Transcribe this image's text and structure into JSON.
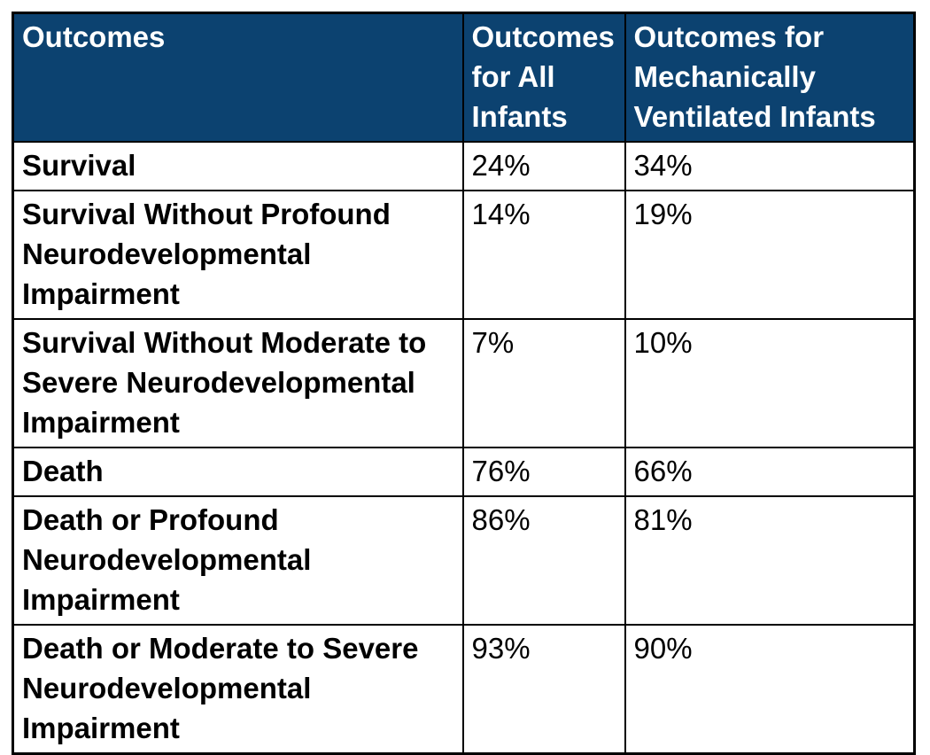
{
  "colors": {
    "header_bg": "#0C4270",
    "header_text": "#FFFFFF",
    "body_text": "#000000",
    "border": "#000000",
    "page_bg": "#FFFFFF"
  },
  "chart_data": {
    "type": "table",
    "columns": [
      "Outcomes",
      "Outcomes for All Infants",
      "Outcomes for Mechanically Ventilated Infants"
    ],
    "rows": [
      [
        "Survival",
        "24%",
        "34%"
      ],
      [
        "Survival Without Profound Neurodevelopmental Impairment",
        "14%",
        "19%"
      ],
      [
        "Survival Without Moderate to Severe Neurodevelopmental Impairment",
        "7%",
        "10%"
      ],
      [
        "Death",
        "76%",
        "66%"
      ],
      [
        "Death or Profound Neurodevelopmental Impairment",
        "86%",
        "81%"
      ],
      [
        "Death or Moderate to Severe Neurodevelopmental Impairment",
        "93%",
        "90%"
      ]
    ],
    "categories": [
      "Survival",
      "Survival Without Profound Neurodevelopmental Impairment",
      "Survival Without Moderate to Severe Neurodevelopmental Impairment",
      "Death",
      "Death or Profound Neurodevelopmental Impairment",
      "Death or Moderate to Severe Neurodevelopmental Impairment"
    ],
    "series": [
      {
        "name": "Outcomes for All Infants",
        "unit": "%",
        "values": [
          24,
          14,
          7,
          76,
          86,
          93
        ]
      },
      {
        "name": "Outcomes for Mechanically Ventilated Infants",
        "unit": "%",
        "values": [
          34,
          19,
          10,
          66,
          81,
          90
        ]
      }
    ],
    "layout": {
      "legend": false,
      "grid": "full-borders",
      "header_position": "top"
    }
  }
}
